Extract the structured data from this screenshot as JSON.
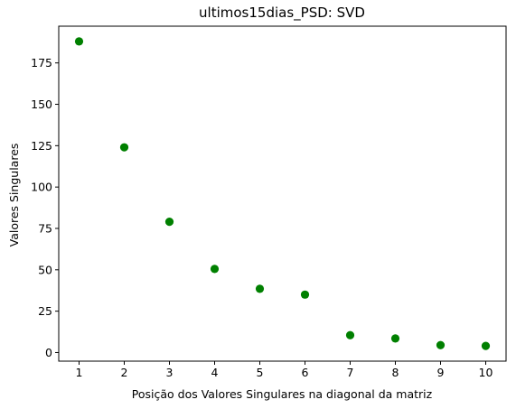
{
  "chart_data": {
    "type": "scatter",
    "title": "ultimos15dias_PSD: SVD",
    "xlabel": "Posição dos Valores Singulares na diagonal da matriz",
    "ylabel": "Valores Singulares",
    "x": [
      1,
      2,
      3,
      4,
      5,
      6,
      7,
      8,
      9,
      10
    ],
    "y": [
      188,
      124,
      79,
      50.5,
      38.5,
      35,
      10.5,
      8.5,
      4.5,
      4
    ],
    "xlim": [
      0.55,
      10.45
    ],
    "ylim": [
      -5.2,
      197.2
    ],
    "xticks": [
      1,
      2,
      3,
      4,
      5,
      6,
      7,
      8,
      9,
      10
    ],
    "yticks": [
      0,
      25,
      50,
      75,
      100,
      125,
      150,
      175
    ],
    "marker_color": "#008000",
    "grid": false,
    "legend": false
  }
}
